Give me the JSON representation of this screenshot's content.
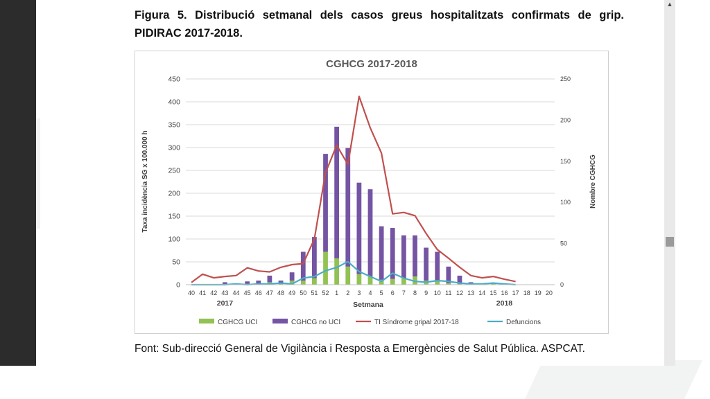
{
  "figure": {
    "title": "Figura 5. Distribució setmanal dels casos greus hospitalitzats confirmats de grip. PIDIRAC 2017-2018.",
    "source": "Font: Sub-direcció General de Vigilància i Resposta a Emergències de Salut Pública. ASPCAT."
  },
  "colors": {
    "uci": "#92c253",
    "no_uci": "#7454a3",
    "ti": "#c0504d",
    "defuncions": "#4bacc6",
    "grid": "#d9d9d9"
  },
  "chart_data": {
    "type": "bar",
    "title": "CGHCG 2017-2018",
    "xlabel": "Setmana",
    "ylabel_left": "Taxa incidència SG x 100.000 h",
    "ylabel_right": "Nombre CGHCG",
    "ylim_left": [
      0,
      450
    ],
    "ylim_right": [
      0,
      250
    ],
    "yticks_left": [
      "0",
      "50",
      "100",
      "150",
      "200",
      "250",
      "300",
      "350",
      "400",
      "450"
    ],
    "yticks_right": [
      "0",
      "50",
      "100",
      "150",
      "200",
      "250"
    ],
    "grid": true,
    "legend_position": "bottom",
    "categories": [
      "40",
      "41",
      "42",
      "43",
      "44",
      "45",
      "46",
      "47",
      "48",
      "49",
      "50",
      "51",
      "52",
      "1",
      "2",
      "3",
      "4",
      "5",
      "6",
      "7",
      "8",
      "9",
      "10",
      "11",
      "12",
      "13",
      "14",
      "15",
      "16",
      "17",
      "18",
      "19",
      "20"
    ],
    "year_labels": [
      {
        "text": "2017",
        "category": "43"
      },
      {
        "text": "2018",
        "category": "16"
      }
    ],
    "series": [
      {
        "name": "CGHCG UCI",
        "type": "bar",
        "axis": "right",
        "values": [
          0,
          0,
          0,
          0,
          0,
          1,
          1,
          3,
          1,
          5,
          5,
          8,
          40,
          32,
          22,
          13,
          10,
          6,
          7,
          8,
          10,
          5,
          4,
          2,
          1,
          0,
          0,
          1,
          0,
          0,
          0,
          0,
          0
        ]
      },
      {
        "name": "CGHCG no UCI",
        "type": "bar",
        "axis": "right",
        "values": [
          0,
          0,
          0,
          3,
          1,
          3,
          4,
          8,
          4,
          10,
          35,
          50,
          119,
          160,
          144,
          111,
          106,
          65,
          62,
          52,
          50,
          40,
          36,
          20,
          10,
          3,
          0,
          1,
          0,
          0,
          0,
          0,
          0
        ]
      },
      {
        "name": "TI Síndrome gripal 2017-18",
        "type": "line",
        "axis": "left",
        "values": [
          5,
          23,
          15,
          18,
          20,
          37,
          30,
          28,
          38,
          44,
          46,
          100,
          245,
          305,
          263,
          412,
          343,
          288,
          155,
          158,
          151,
          112,
          77,
          58,
          38,
          20,
          15,
          18,
          12,
          7,
          null,
          null,
          null
        ]
      },
      {
        "name": "Defuncions",
        "type": "line",
        "axis": "right",
        "values": [
          0,
          0,
          0,
          0,
          1,
          0,
          1,
          1,
          2,
          1,
          8,
          10,
          17,
          21,
          28,
          16,
          10,
          4,
          14,
          8,
          4,
          3,
          5,
          4,
          2,
          1,
          1,
          2,
          1,
          0,
          null,
          null,
          null
        ]
      }
    ]
  }
}
